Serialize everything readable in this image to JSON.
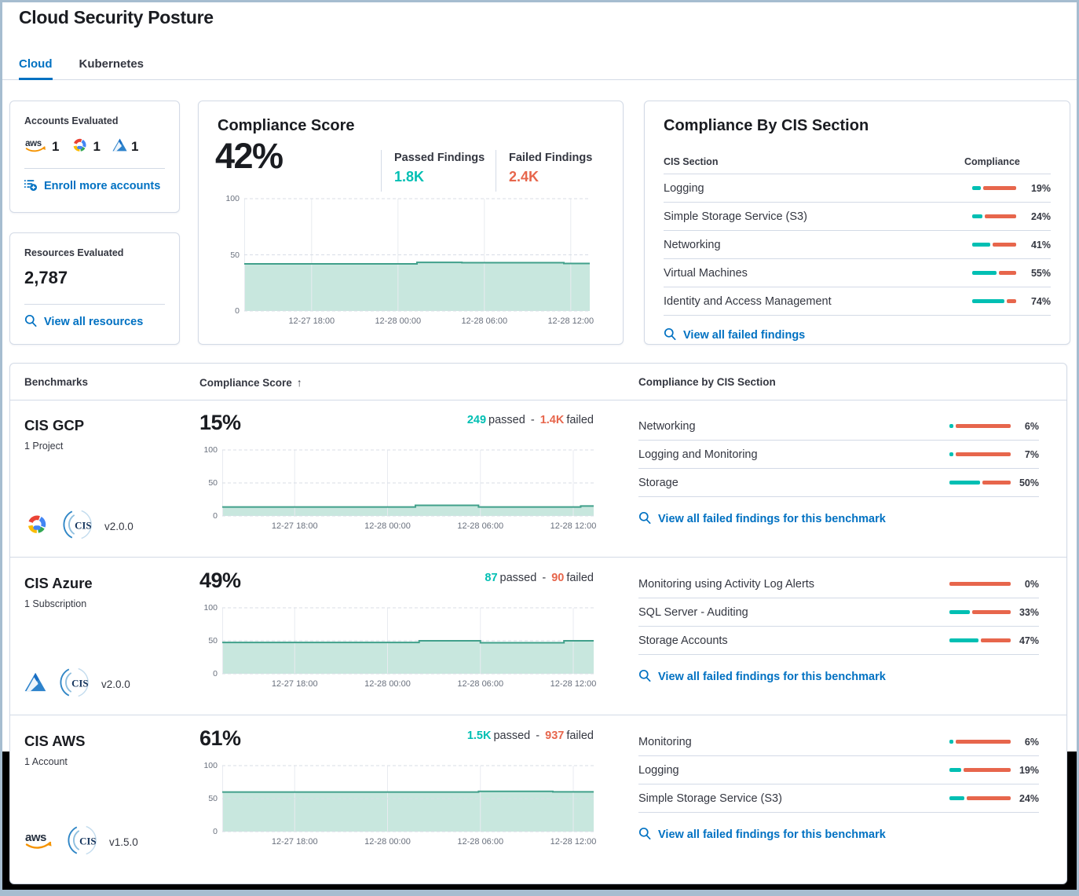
{
  "header": {
    "title": "Cloud Security Posture"
  },
  "tabs": [
    {
      "label": "Cloud",
      "active": true
    },
    {
      "label": "Kubernetes",
      "active": false
    }
  ],
  "accounts_card": {
    "title": "Accounts Evaluated",
    "providers": [
      {
        "name": "AWS",
        "count": "1"
      },
      {
        "name": "GCP",
        "count": "1"
      },
      {
        "name": "Azure",
        "count": "1"
      }
    ],
    "link": "Enroll more accounts"
  },
  "resources_card": {
    "title": "Resources Evaluated",
    "value": "2,787",
    "link": "View all resources"
  },
  "score_card": {
    "title": "Compliance Score",
    "score": "42%",
    "passed_label": "Passed Findings",
    "passed_value": "1.8K",
    "failed_label": "Failed Findings",
    "failed_value": "2.4K"
  },
  "cis_card": {
    "title": "Compliance By CIS Section",
    "col_section": "CIS Section",
    "col_compliance": "Compliance",
    "rows": [
      {
        "name": "Logging",
        "pct": 19,
        "pct_label": "19%"
      },
      {
        "name": "Simple Storage Service (S3)",
        "pct": 24,
        "pct_label": "24%"
      },
      {
        "name": "Networking",
        "pct": 41,
        "pct_label": "41%"
      },
      {
        "name": "Virtual Machines",
        "pct": 55,
        "pct_label": "55%"
      },
      {
        "name": "Identity and Access Management",
        "pct": 74,
        "pct_label": "74%"
      }
    ],
    "link": "View all failed findings"
  },
  "benchmarks": {
    "col_benchmarks": "Benchmarks",
    "col_score": "Compliance Score",
    "sort_icon": "↑",
    "col_sections": "Compliance by CIS Section",
    "passed_word": "passed",
    "separator": "-",
    "failed_word": "failed",
    "link": "View all failed findings for this benchmark",
    "rows": [
      {
        "name": "CIS GCP",
        "scope": "1 Project",
        "version": "v2.0.0",
        "provider": "GCP",
        "score": "15%",
        "passed": "249",
        "failed": "1.4K",
        "sections": [
          {
            "name": "Networking",
            "pct": 6,
            "pct_label": "6%"
          },
          {
            "name": "Logging and Monitoring",
            "pct": 7,
            "pct_label": "7%"
          },
          {
            "name": "Storage",
            "pct": 50,
            "pct_label": "50%"
          }
        ]
      },
      {
        "name": "CIS Azure",
        "scope": "1 Subscription",
        "version": "v2.0.0",
        "provider": "Azure",
        "score": "49%",
        "passed": "87",
        "failed": "90",
        "sections": [
          {
            "name": "Monitoring using Activity Log Alerts",
            "pct": 0,
            "pct_label": "0%"
          },
          {
            "name": "SQL Server - Auditing",
            "pct": 33,
            "pct_label": "33%"
          },
          {
            "name": "Storage Accounts",
            "pct": 47,
            "pct_label": "47%"
          }
        ]
      },
      {
        "name": "CIS AWS",
        "scope": "1 Account",
        "version": "v1.5.0",
        "provider": "AWS",
        "score": "61%",
        "passed": "1.5K",
        "failed": "937",
        "sections": [
          {
            "name": "Monitoring",
            "pct": 6,
            "pct_label": "6%"
          },
          {
            "name": "Logging",
            "pct": 19,
            "pct_label": "19%"
          },
          {
            "name": "Simple Storage Service (S3)",
            "pct": 24,
            "pct_label": "24%"
          }
        ]
      }
    ]
  },
  "chart_data": [
    {
      "id": "overall-compliance-trend",
      "type": "area",
      "title": "Compliance Score trend",
      "ylim": [
        0,
        100
      ],
      "y_ticks": [
        0,
        50,
        100
      ],
      "x_ticks": [
        {
          "pos": 19.5,
          "label": "12-27 18:00"
        },
        {
          "pos": 44.5,
          "label": "12-28 00:00"
        },
        {
          "pos": 69.5,
          "label": "12-28 06:00"
        },
        {
          "pos": 94.5,
          "label": "12-28 12:00"
        }
      ],
      "points": [
        [
          0,
          42
        ],
        [
          50,
          42
        ],
        [
          50,
          43.3
        ],
        [
          63,
          43.3
        ],
        [
          63,
          43
        ],
        [
          92.5,
          43
        ],
        [
          92.5,
          42.3
        ],
        [
          100,
          42.3
        ]
      ]
    },
    {
      "id": "cis-gcp-trend",
      "type": "area",
      "title": "CIS GCP compliance trend",
      "ylim": [
        0,
        100
      ],
      "y_ticks": [
        0,
        50,
        100
      ],
      "x_ticks": [
        {
          "pos": 19.5,
          "label": "12-27 18:00"
        },
        {
          "pos": 44.5,
          "label": "12-28 00:00"
        },
        {
          "pos": 69.5,
          "label": "12-28 06:00"
        },
        {
          "pos": 94.5,
          "label": "12-28 12:00"
        }
      ],
      "points": [
        [
          0,
          13.5
        ],
        [
          52,
          13.5
        ],
        [
          52,
          16
        ],
        [
          69,
          16
        ],
        [
          69,
          13.5
        ],
        [
          96.5,
          13.5
        ],
        [
          96.5,
          15
        ],
        [
          100,
          15
        ]
      ]
    },
    {
      "id": "cis-azure-trend",
      "type": "area",
      "title": "CIS Azure compliance trend",
      "ylim": [
        0,
        100
      ],
      "y_ticks": [
        0,
        50,
        100
      ],
      "x_ticks": [
        {
          "pos": 19.5,
          "label": "12-27 18:00"
        },
        {
          "pos": 44.5,
          "label": "12-28 00:00"
        },
        {
          "pos": 69.5,
          "label": "12-28 06:00"
        },
        {
          "pos": 94.5,
          "label": "12-28 12:00"
        }
      ],
      "points": [
        [
          0,
          47.5
        ],
        [
          53,
          47.5
        ],
        [
          53,
          50
        ],
        [
          69.5,
          50
        ],
        [
          69.5,
          47
        ],
        [
          92,
          47
        ],
        [
          92,
          50
        ],
        [
          100,
          50
        ]
      ]
    },
    {
      "id": "cis-aws-trend",
      "type": "area",
      "title": "CIS AWS compliance trend",
      "ylim": [
        0,
        100
      ],
      "y_ticks": [
        0,
        50,
        100
      ],
      "x_ticks": [
        {
          "pos": 19.5,
          "label": "12-27 18:00"
        },
        {
          "pos": 44.5,
          "label": "12-28 00:00"
        },
        {
          "pos": 69.5,
          "label": "12-28 06:00"
        },
        {
          "pos": 94.5,
          "label": "12-28 12:00"
        }
      ],
      "points": [
        [
          0,
          60
        ],
        [
          69,
          60
        ],
        [
          69,
          61
        ],
        [
          89,
          61
        ],
        [
          89,
          60.3
        ],
        [
          100,
          60.3
        ]
      ]
    }
  ],
  "colors": {
    "accent": "#0071c2",
    "passed_teal": "#00bfb3",
    "failed_orange": "#e7664c",
    "chart_line": "#41a08b",
    "chart_fill": "rgba(84,179,153,0.32)",
    "grid_vertical": "#e8ebf0",
    "grid_horizontal": "#d8dde6",
    "panel_border": "#d3dae6",
    "frame_border": "#a6bdd0",
    "void_black": "#000000"
  }
}
